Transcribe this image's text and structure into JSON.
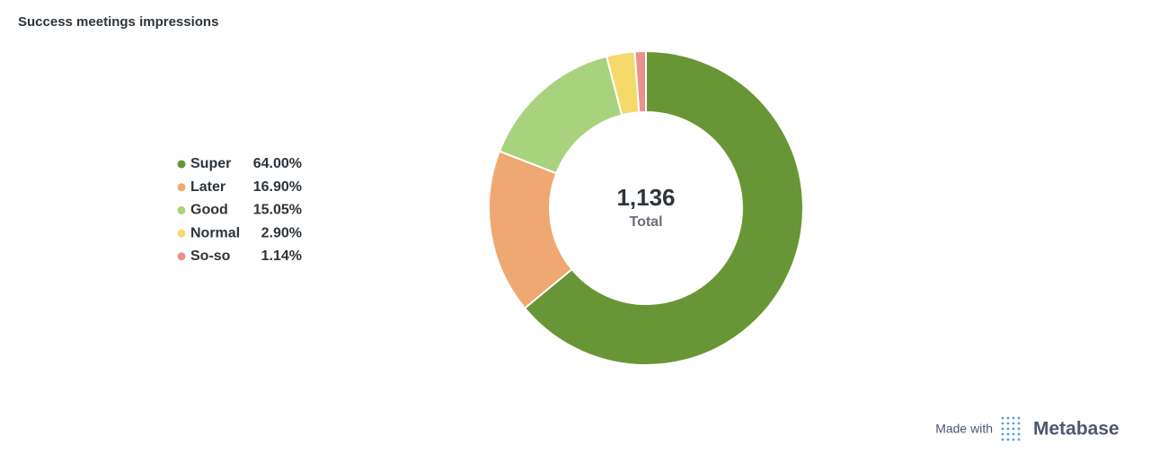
{
  "chart_data": {
    "type": "pie",
    "title": "Success meetings impressions",
    "categories": [
      "Super",
      "Later",
      "Good",
      "Normal",
      "So-so"
    ],
    "values": [
      64.0,
      16.9,
      15.05,
      2.9,
      1.14
    ],
    "value_labels": [
      "64.00%",
      "16.90%",
      "15.05%",
      "2.90%",
      "1.14%"
    ],
    "colors": [
      "#689636",
      "#f0a872",
      "#a9d27e",
      "#f6d96b",
      "#ec8f8f"
    ],
    "total": {
      "value": 1136,
      "label": "1,136"
    },
    "total_caption": "Total",
    "legend": "left"
  },
  "footer": {
    "prefix": "Made with",
    "brand": "Metabase"
  }
}
